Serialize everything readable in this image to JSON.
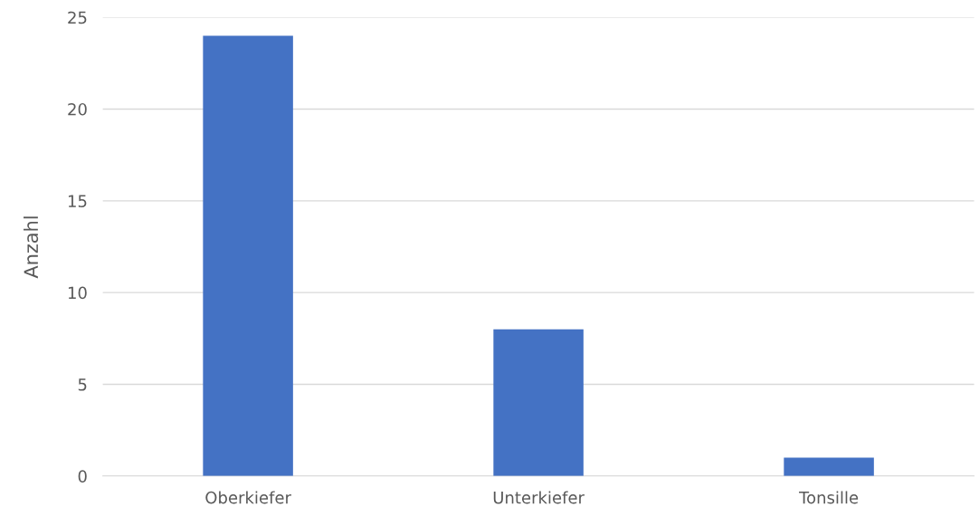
{
  "chart_data": {
    "type": "bar",
    "ylabel": "Anzahl",
    "categories": [
      "Oberkiefer",
      "Unterkiefer",
      "Tonsille"
    ],
    "values": [
      24,
      8,
      1
    ],
    "color": "#4472c4",
    "ylim": [
      0,
      25
    ],
    "yticks": [
      0,
      5,
      10,
      15,
      20,
      25
    ],
    "grid": "y"
  }
}
